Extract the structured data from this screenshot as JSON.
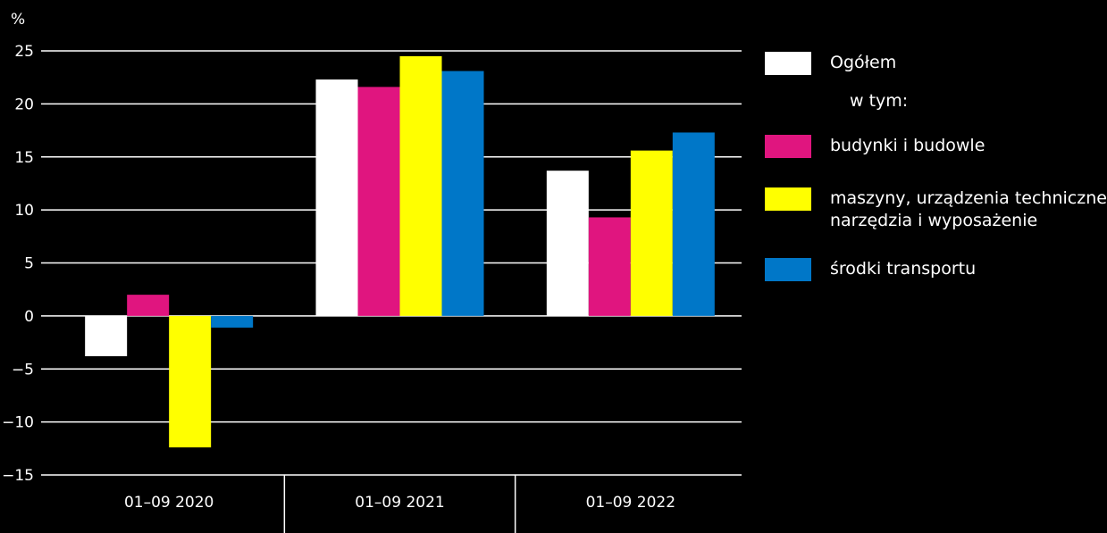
{
  "chart_data": {
    "type": "bar",
    "ylabel": "%",
    "ylim": [
      -15,
      25
    ],
    "yticks": [
      25,
      20,
      15,
      10,
      5,
      0,
      -5,
      -10,
      -15
    ],
    "ytick_labels": [
      "25",
      "20",
      "15",
      "10",
      "5",
      "0",
      "−5",
      "−10",
      "−15"
    ],
    "categories": [
      "01–09 2020",
      "01–09 2021",
      "01–09 2022"
    ],
    "series": [
      {
        "name": "Ogółem",
        "color": "#ffffff",
        "values": [
          -3.8,
          22.3,
          13.7
        ]
      },
      {
        "name": "budynki i budowle",
        "color": "#e0157f",
        "values": [
          2.0,
          21.6,
          9.3
        ]
      },
      {
        "name": "maszyny, urządzenia techniczne, narzędzia i wyposażenie",
        "color": "#ffff00",
        "values": [
          -12.4,
          24.5,
          15.6
        ]
      },
      {
        "name": "środki transportu",
        "color": "#0077c8",
        "values": [
          -1.1,
          23.1,
          17.3
        ]
      }
    ],
    "grid": true,
    "legend_position": "right"
  },
  "legend": {
    "items": [
      {
        "label": "Ogółem",
        "color": "#ffffff"
      },
      {
        "label": "budynki i budowle",
        "color": "#e0157f"
      },
      {
        "label_line1": "maszyny, urządzenia techniczne,",
        "label_line2": "narzędzia i wyposażenie",
        "color": "#ffff00"
      },
      {
        "label": "środki transportu",
        "color": "#0077c8"
      }
    ],
    "subheader": "w tym:"
  }
}
